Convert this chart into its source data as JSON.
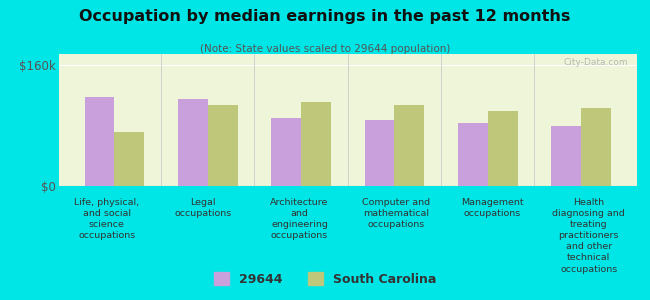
{
  "title": "Occupation by median earnings in the past 12 months",
  "subtitle": "(Note: State values scaled to 29644 population)",
  "background_color": "#00e5e5",
  "plot_bg_color": "#eef5d8",
  "categories": [
    "Life, physical,\nand social\nscience\noccupations",
    "Legal\noccupations",
    "Architecture\nand\nengineering\noccupations",
    "Computer and\nmathematical\noccupations",
    "Management\noccupations",
    "Health\ndiagnosing and\ntreating\npractitioners\nand other\ntechnical\noccupations"
  ],
  "values_29644": [
    118000,
    115000,
    90000,
    88000,
    84000,
    80000
  ],
  "values_sc": [
    72000,
    108000,
    112000,
    107000,
    100000,
    104000
  ],
  "ylim": [
    0,
    175000
  ],
  "yticks": [
    0,
    160000
  ],
  "ytick_labels": [
    "$0",
    "$160k"
  ],
  "color_29644": "#c9a0dc",
  "color_sc": "#bfc87a",
  "legend_label_29644": "29644",
  "legend_label_sc": "South Carolina",
  "watermark": "City-Data.com"
}
